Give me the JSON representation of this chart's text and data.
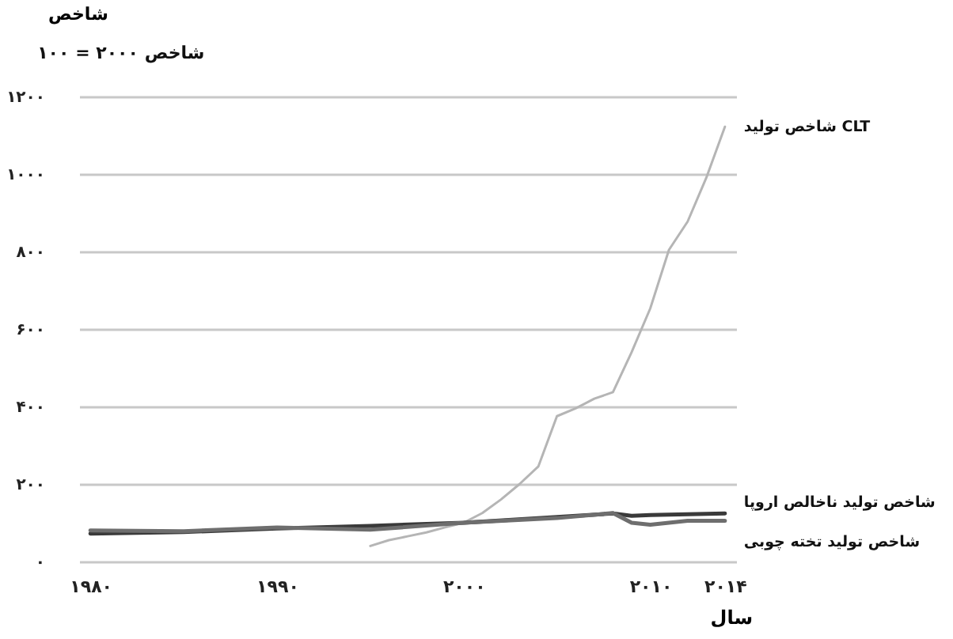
{
  "chart_data": {
    "type": "line",
    "subtitle": "شاخص ۲۰۰۰ = ۱۰۰",
    "ylabel": "شاخص",
    "xlabel": "سال",
    "series": [
      {
        "name": "شاخص تولید CLT",
        "color": "#b5b5b5",
        "x": [
          1995,
          1996,
          1997,
          1998,
          1999,
          2000,
          2001,
          2002,
          2003,
          2004,
          2005,
          2006,
          2007,
          2008,
          2009,
          2010,
          2011,
          2012,
          2013,
          2014
        ],
        "values": [
          40,
          55,
          65,
          75,
          88,
          100,
          125,
          160,
          200,
          245,
          375,
          395,
          420,
          437,
          540,
          653,
          804,
          877,
          990,
          1122
        ]
      },
      {
        "name": "شاخص تولید ناخالص اروپا",
        "color": "#3a3a3a",
        "x": [
          1980,
          1985,
          1990,
          1995,
          2000,
          2005,
          2008,
          2009,
          2010,
          2012,
          2014
        ],
        "values": [
          72,
          76,
          85,
          92,
          100,
          115,
          124,
          118,
          120,
          122,
          124
        ]
      },
      {
        "name": "شاخص تولید تخته چوبی",
        "color": "#6e6e6e",
        "x": [
          1980,
          1985,
          1990,
          1995,
          2000,
          2005,
          2008,
          2009,
          2010,
          2012,
          2014
        ],
        "values": [
          80,
          78,
          88,
          82,
          100,
          112,
          125,
          100,
          95,
          105,
          105
        ]
      }
    ],
    "xlim": [
      1979.4,
      2014.6
    ],
    "xticks": [
      {
        "value": 1980,
        "label": "۱۹۸۰"
      },
      {
        "value": 1990,
        "label": "۱۹۹۰"
      },
      {
        "value": 2000,
        "label": "۲۰۰۰"
      },
      {
        "value": 2010,
        "label": "۲۰۱۰"
      },
      {
        "value": 2014,
        "label": "۲۰۱۴"
      }
    ],
    "ylim": [
      0,
      1200
    ],
    "yticks": [
      {
        "value": 0,
        "label": "۰"
      },
      {
        "value": 200,
        "label": "۲۰۰"
      },
      {
        "value": 400,
        "label": "۴۰۰"
      },
      {
        "value": 600,
        "label": "۶۰۰"
      },
      {
        "value": 800,
        "label": "۸۰۰"
      },
      {
        "value": 1000,
        "label": "۱۰۰۰"
      },
      {
        "value": 1200,
        "label": "۱۲۰۰"
      }
    ],
    "grid": "y",
    "marker": "none",
    "line_style": "solid"
  }
}
